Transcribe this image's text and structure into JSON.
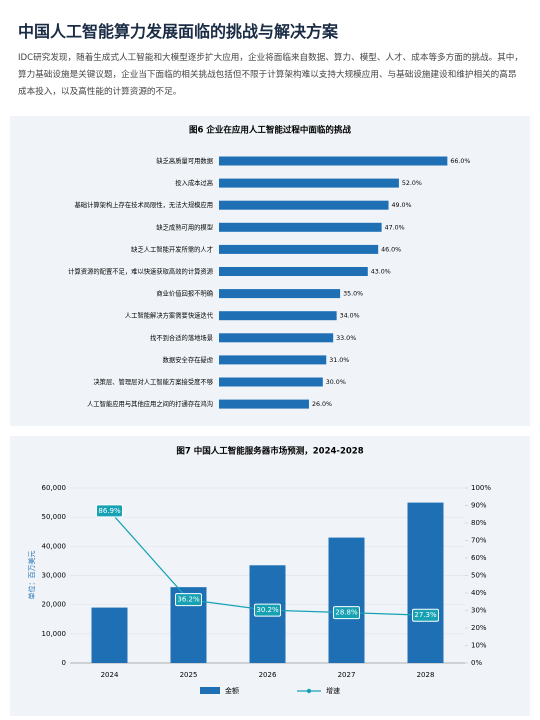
{
  "header": {
    "title": "中国人工智能算力发展面临的挑战与解决方案"
  },
  "paragraph": "IDC研究发现，随着生成式人工智能和大模型逐步扩大应用，企业将面临来自数据、算力、模型、人才、成本等多方面的挑战。其中，算力基础设施是关键议题，企业当下面临的相关挑战包括但不限于计算架构难以支持大规模应用、与基础设施建设和维护相关的高昂成本投入，以及高性能的计算资源的不足。",
  "chart_data": [
    {
      "type": "hbar",
      "title": "图6 企业在应用人工智能过程中面临的挑战",
      "color": "#1f6fb5",
      "categories": [
        "缺乏高质量可用数据",
        "投入成本过高",
        "基础计算架构上存在技术局限性，无法大规模应用",
        "缺乏成熟可用的模型",
        "缺乏人工智能开发所需的人才",
        "计算资源的配置不足，难以快速获取高效的计算资源",
        "商业价值回报不明确",
        "人工智能解决方案需要快速迭代",
        "找不到合适的落地场景",
        "数据安全存在疑虑",
        "决策层、管理层对人工智能方案接受度不够",
        "人工智能应用与其他应用之间的打通存在鸿沟"
      ],
      "values": [
        66,
        52,
        49,
        47,
        46,
        43,
        35,
        34,
        33,
        31,
        30,
        26
      ],
      "value_labels": [
        "66.0%",
        "52.0%",
        "49.0%",
        "47.0%",
        "46.0%",
        "43.0%",
        "35.0%",
        "34.0%",
        "33.0%",
        "31.0%",
        "30.0%",
        "26.0%"
      ]
    },
    {
      "type": "bar_line",
      "title": "图7 中国人工智能服务器市场预测，2024-2028",
      "ylabel": "单位：百万美元",
      "categories": [
        "2024",
        "2025",
        "2026",
        "2027",
        "2028"
      ],
      "ylim": [
        0,
        60000
      ],
      "yticks": [
        0,
        {
          "value": 10000,
          "label": "10,000"
        },
        {
          "value": 20000,
          "label": "20,000"
        },
        {
          "value": 30000,
          "label": "30,000"
        },
        {
          "value": 40000,
          "label": "40,000"
        },
        {
          "value": 50000,
          "label": "50,000"
        },
        {
          "value": 60000,
          "label": "60,000"
        }
      ],
      "y2lim": [
        0,
        100
      ],
      "y2ticks": [
        {
          "value": 0,
          "label": "0%"
        },
        {
          "value": 10,
          "label": "10%"
        },
        {
          "value": 20,
          "label": "20%"
        },
        {
          "value": 30,
          "label": "30%"
        },
        {
          "value": 40,
          "label": "40%"
        },
        {
          "value": 50,
          "label": "50%"
        },
        {
          "value": 60,
          "label": "60%"
        },
        {
          "value": 70,
          "label": "70%"
        },
        {
          "value": 80,
          "label": "80%"
        },
        {
          "value": 90,
          "label": "90%"
        },
        {
          "value": 100,
          "label": "100%"
        }
      ],
      "series": [
        {
          "name": "金额",
          "color": "#1f6fb5",
          "values": [
            19000,
            26000,
            33500,
            43000,
            55000
          ]
        },
        {
          "name": "增速",
          "color": "#17a2b4",
          "axis": "y2",
          "values": [
            86.9,
            36.2,
            30.2,
            28.8,
            27.3
          ],
          "value_labels": [
            "86.9%",
            "36.2%",
            "30.2%",
            "28.8%",
            "27.3%"
          ]
        }
      ]
    }
  ]
}
